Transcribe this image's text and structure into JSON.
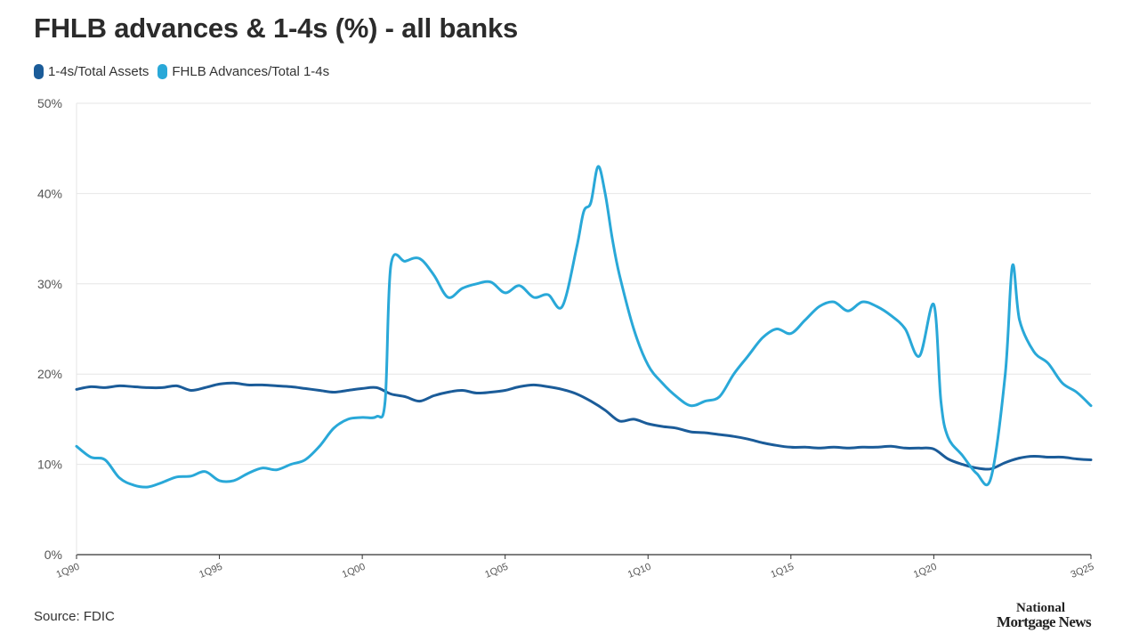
{
  "title": "FHLB advances & 1-4s (%) - all banks",
  "source": "Source: FDIC",
  "brand": {
    "line1": "National",
    "line2": "Mortgage News"
  },
  "colors": {
    "dark": "#1b5c99",
    "light": "#29a8d8",
    "grid": "#e6e6e6",
    "axis": "#333333"
  },
  "chart_data": {
    "type": "line",
    "title": "FHLB advances & 1-4s (%) - all banks",
    "xlabel": "",
    "ylabel": "",
    "ylim": [
      0,
      50
    ],
    "xlim": [
      1990.0,
      2025.5
    ],
    "y_ticks": [
      0,
      10,
      20,
      30,
      40,
      50
    ],
    "y_tick_labels": [
      "0%",
      "10%",
      "20%",
      "30%",
      "40%",
      "50%"
    ],
    "x_ticks": [
      1990,
      1995,
      2000,
      2005,
      2010,
      2015,
      2020,
      2025.5
    ],
    "x_tick_labels": [
      "1Q90",
      "1Q95",
      "1Q00",
      "1Q05",
      "1Q10",
      "1Q15",
      "1Q20",
      "3Q25"
    ],
    "grid": true,
    "legend_position": "top-left",
    "series": [
      {
        "name": "1-4s/Total Assets",
        "color": "#1b5c99",
        "x": [
          1990.0,
          1990.5,
          1991.0,
          1991.5,
          1992.0,
          1992.5,
          1993.0,
          1993.5,
          1994.0,
          1994.5,
          1995.0,
          1995.5,
          1996.0,
          1996.5,
          1997.0,
          1997.5,
          1998.0,
          1998.5,
          1999.0,
          1999.5,
          2000.0,
          2000.5,
          2001.0,
          2001.5,
          2002.0,
          2002.5,
          2003.0,
          2003.5,
          2004.0,
          2004.5,
          2005.0,
          2005.5,
          2006.0,
          2006.5,
          2007.0,
          2007.5,
          2008.0,
          2008.5,
          2009.0,
          2009.5,
          2010.0,
          2010.5,
          2011.0,
          2011.5,
          2012.0,
          2012.5,
          2013.0,
          2013.5,
          2014.0,
          2014.5,
          2015.0,
          2015.5,
          2016.0,
          2016.5,
          2017.0,
          2017.5,
          2018.0,
          2018.5,
          2019.0,
          2019.5,
          2020.0,
          2020.5,
          2021.0,
          2021.5,
          2022.0,
          2022.5,
          2023.0,
          2023.5,
          2024.0,
          2024.5,
          2025.0,
          2025.5
        ],
        "values": [
          18.3,
          18.6,
          18.5,
          18.7,
          18.6,
          18.5,
          18.5,
          18.7,
          18.2,
          18.5,
          18.9,
          19.0,
          18.8,
          18.8,
          18.7,
          18.6,
          18.4,
          18.2,
          18.0,
          18.2,
          18.4,
          18.5,
          17.8,
          17.5,
          17.0,
          17.6,
          18.0,
          18.2,
          17.9,
          18.0,
          18.2,
          18.6,
          18.8,
          18.6,
          18.3,
          17.8,
          17.0,
          16.0,
          14.8,
          15.0,
          14.5,
          14.2,
          14.0,
          13.6,
          13.5,
          13.3,
          13.1,
          12.8,
          12.4,
          12.1,
          11.9,
          11.9,
          11.8,
          11.9,
          11.8,
          11.9,
          11.9,
          12.0,
          11.8,
          11.8,
          11.7,
          10.6,
          10.0,
          9.6,
          9.5,
          10.2,
          10.7,
          10.9,
          10.8,
          10.8,
          10.6,
          10.5
        ]
      },
      {
        "name": "FHLB Advances/Total 1-4s",
        "color": "#29a8d8",
        "x": [
          1990.0,
          1990.5,
          1991.0,
          1991.5,
          1992.0,
          1992.5,
          1993.0,
          1993.5,
          1994.0,
          1994.5,
          1995.0,
          1995.5,
          1996.0,
          1996.5,
          1997.0,
          1997.5,
          1998.0,
          1998.5,
          1999.0,
          1999.5,
          2000.0,
          2000.5,
          2000.8,
          2001.0,
          2001.5,
          2002.0,
          2002.5,
          2003.0,
          2003.5,
          2004.0,
          2004.5,
          2005.0,
          2005.5,
          2006.0,
          2006.5,
          2007.0,
          2007.5,
          2007.75,
          2008.0,
          2008.25,
          2008.5,
          2008.75,
          2009.0,
          2009.5,
          2010.0,
          2010.5,
          2011.0,
          2011.5,
          2012.0,
          2012.5,
          2013.0,
          2013.5,
          2014.0,
          2014.5,
          2015.0,
          2015.5,
          2016.0,
          2016.5,
          2017.0,
          2017.5,
          2018.0,
          2018.5,
          2019.0,
          2019.5,
          2020.0,
          2020.25,
          2020.5,
          2021.0,
          2021.5,
          2022.0,
          2022.5,
          2022.75,
          2023.0,
          2023.5,
          2024.0,
          2024.5,
          2025.0,
          2025.5
        ],
        "values": [
          12.0,
          10.8,
          10.5,
          8.5,
          7.7,
          7.5,
          8.0,
          8.6,
          8.7,
          9.2,
          8.2,
          8.2,
          9.0,
          9.6,
          9.4,
          10.0,
          10.5,
          12.0,
          14.0,
          15.0,
          15.2,
          15.3,
          17.0,
          32.0,
          32.5,
          32.8,
          31.0,
          28.5,
          29.5,
          30.0,
          30.2,
          29.0,
          29.8,
          28.5,
          28.8,
          27.5,
          34.0,
          38.0,
          39.0,
          43.0,
          40.0,
          35.0,
          31.0,
          25.0,
          21.0,
          19.0,
          17.5,
          16.5,
          17.0,
          17.5,
          20.0,
          22.0,
          24.0,
          25.0,
          24.5,
          26.0,
          27.5,
          28.0,
          27.0,
          28.0,
          27.5,
          26.5,
          25.0,
          22.0,
          27.7,
          17.0,
          13.0,
          11.0,
          9.0,
          8.5,
          20.0,
          32.0,
          26.0,
          22.5,
          21.2,
          19.0,
          18.0,
          16.5
        ]
      }
    ]
  }
}
